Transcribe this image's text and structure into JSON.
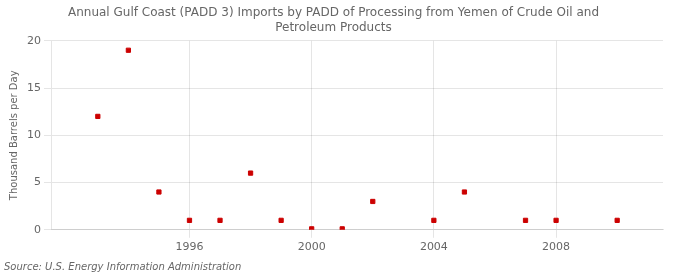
{
  "chart_data": {
    "type": "scatter",
    "title": "Annual Gulf Coast (PADD 3) Imports by PADD of Processing from Yemen of Crude Oil and\nPetroleum Products",
    "y_label": "Thousand Barrels per Day",
    "annotations": [
      "Source: U.S. Energy Information Administration"
    ],
    "x": [
      1993,
      1994,
      1995,
      1996,
      1997,
      1998,
      1999,
      2000,
      2001,
      2002,
      2004,
      2005,
      2007,
      2008,
      2010
    ],
    "values": [
      12,
      19,
      4,
      1,
      1,
      6,
      1,
      0.1,
      0.1,
      3,
      1,
      4,
      1,
      1,
      1
    ],
    "color": "#cc0000",
    "marker": "square",
    "xlim": [
      1991.5,
      2011.5
    ],
    "xticks": [
      1996,
      2000,
      2004,
      2008
    ],
    "ylim": [
      0,
      20
    ],
    "yticks": [
      0,
      5,
      10,
      15,
      20
    ],
    "grid": true
  }
}
